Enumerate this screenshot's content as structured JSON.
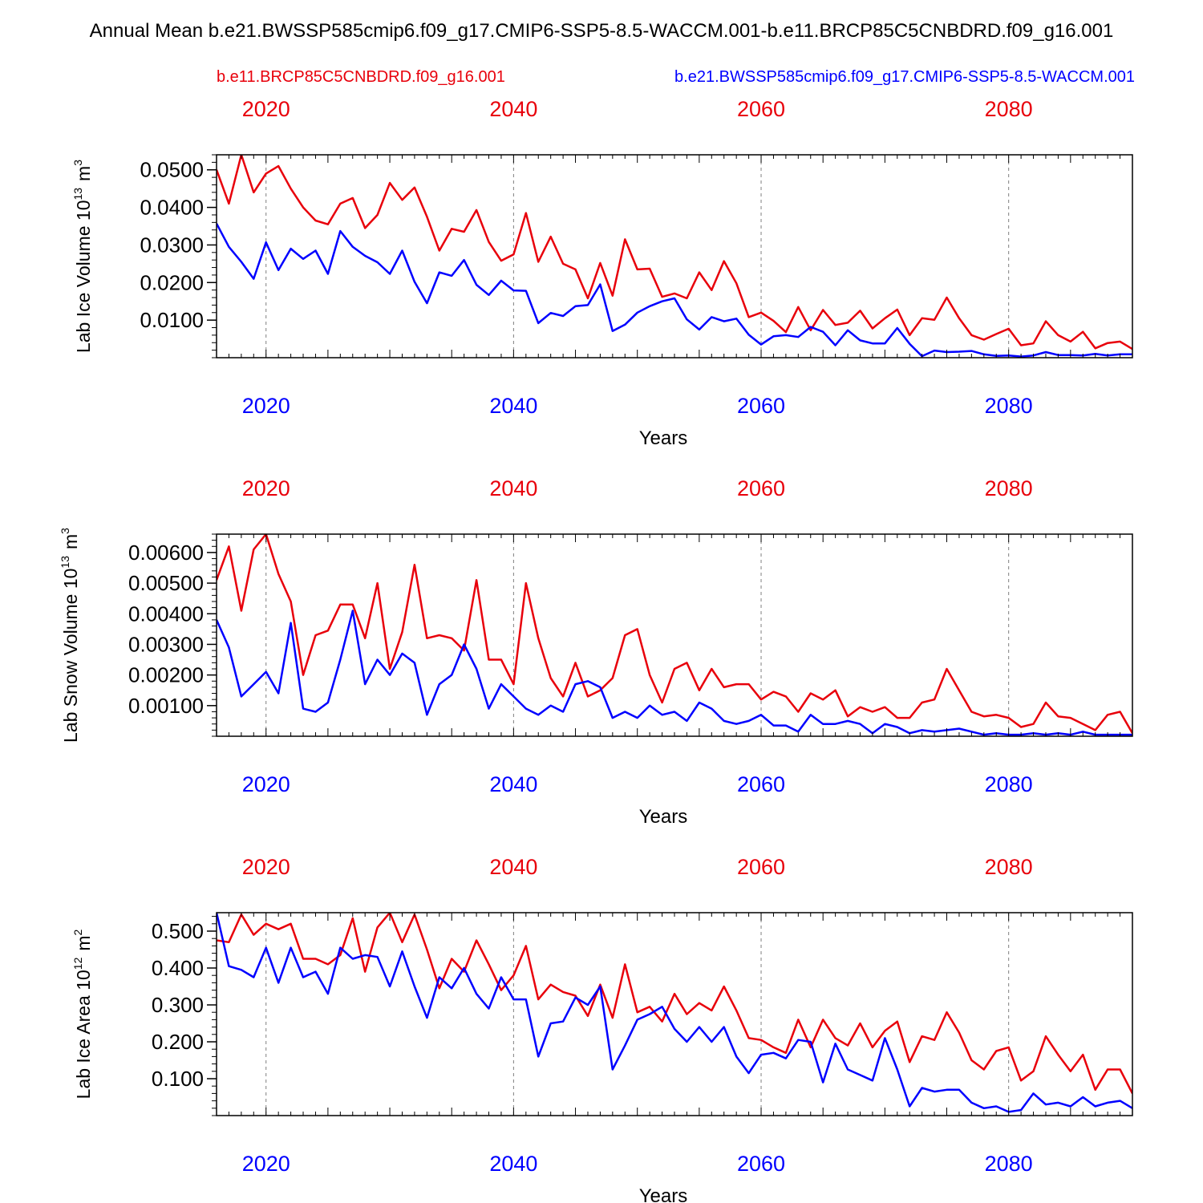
{
  "title": "Annual Mean b.e21.BWSSP585cmip6.f09_g17.CMIP6-SSP5-8.5-WACCM.001-b.e11.BRCP85C5CNBDRD.f09_g16.001",
  "colors": {
    "case1": "#e8000b",
    "case2": "#0000ff",
    "axis": "#000000",
    "grid": "#7f7f7f"
  },
  "legend": {
    "case1": "b.e11.BRCP85C5CNBDRD.f09_g16.001",
    "case2": "b.e21.BWSSP585cmip6.f09_g17.CMIP6-SSP5-8.5-WACCM.001"
  },
  "chart_data": [
    {
      "type": "line",
      "ylabel": "Lab Ice Volume 10",
      "ylabel_sup": "13",
      "ylabel_unit": "m",
      "ylabel_unit_sup": "3",
      "xlabel": "Years",
      "xlim": [
        2016,
        2090
      ],
      "ylim": [
        0,
        0.054
      ],
      "yticks": [
        0.01,
        0.02,
        0.03,
        0.04,
        0.05
      ],
      "yticklabels": [
        "0.0100",
        "0.0200",
        "0.0300",
        "0.0400",
        "0.0500"
      ],
      "xticks": [
        2020,
        2040,
        2060,
        2080
      ],
      "xticklabels": [
        "2020",
        "2040",
        "2060",
        "2080"
      ],
      "grid_x": true,
      "series": [
        {
          "name": "b.e11.BRCP85C5CNBDRD.f09_g16.001",
          "color": "#e8000b",
          "values": [
            0.05,
            0.041,
            0.054,
            0.044,
            0.049,
            0.051,
            0.045,
            0.04,
            0.0365,
            0.0355,
            0.041,
            0.0425,
            0.0345,
            0.038,
            0.0465,
            0.042,
            0.0453,
            0.0375,
            0.0285,
            0.0343,
            0.0335,
            0.0393,
            0.0308,
            0.0258,
            0.0275,
            0.0385,
            0.0255,
            0.0322,
            0.025,
            0.0235,
            0.0158,
            0.0252,
            0.0165,
            0.0315,
            0.0235,
            0.0237,
            0.0162,
            0.0171,
            0.0158,
            0.0227,
            0.018,
            0.0257,
            0.0198,
            0.0108,
            0.012,
            0.0098,
            0.0068,
            0.0135,
            0.0073,
            0.0127,
            0.0087,
            0.0093,
            0.0125,
            0.0078,
            0.0105,
            0.0128,
            0.006,
            0.0105,
            0.0101,
            0.016,
            0.0105,
            0.006,
            0.0048,
            0.0063,
            0.0077,
            0.0033,
            0.0038,
            0.0097,
            0.006,
            0.0043,
            0.0069,
            0.0025,
            0.0039,
            0.0043,
            0.0023
          ]
        },
        {
          "name": "b.e21.BWSSP585cmip6.f09_g17.CMIP6-SSP5-8.5-WACCM.001",
          "color": "#0000ff",
          "values": [
            0.0357,
            0.0295,
            0.0255,
            0.021,
            0.0307,
            0.0233,
            0.029,
            0.0263,
            0.0285,
            0.0223,
            0.0337,
            0.0295,
            0.0271,
            0.0254,
            0.0223,
            0.0285,
            0.0202,
            0.0145,
            0.0227,
            0.0218,
            0.026,
            0.0194,
            0.0167,
            0.0205,
            0.0179,
            0.0178,
            0.0092,
            0.0119,
            0.0111,
            0.0137,
            0.014,
            0.0195,
            0.0071,
            0.0088,
            0.012,
            0.0137,
            0.015,
            0.0158,
            0.0102,
            0.0075,
            0.0108,
            0.0097,
            0.0104,
            0.0061,
            0.0035,
            0.0057,
            0.006,
            0.0055,
            0.0082,
            0.0069,
            0.0033,
            0.0073,
            0.0046,
            0.0038,
            0.0038,
            0.0079,
            0.0037,
            0.0004,
            0.0019,
            0.0015,
            0.0016,
            0.0018,
            0.0009,
            0.0005,
            0.0006,
            0.0003,
            0.0006,
            0.0015,
            0.0007,
            0.0007,
            0.0006,
            0.001,
            0.0006,
            0.0009,
            0.0009
          ]
        }
      ]
    },
    {
      "type": "line",
      "ylabel": "Lab Snow Volume 10",
      "ylabel_sup": "13",
      "ylabel_unit": "m",
      "ylabel_unit_sup": "3",
      "xlabel": "Years",
      "xlim": [
        2016,
        2090
      ],
      "ylim": [
        0,
        0.0066
      ],
      "yticks": [
        0.001,
        0.002,
        0.003,
        0.004,
        0.005,
        0.006
      ],
      "yticklabels": [
        "0.00100",
        "0.00200",
        "0.00300",
        "0.00400",
        "0.00500",
        "0.00600"
      ],
      "xticks": [
        2020,
        2040,
        2060,
        2080
      ],
      "xticklabels": [
        "2020",
        "2040",
        "2060",
        "2080"
      ],
      "grid_x": true,
      "series": [
        {
          "name": "b.e11.BRCP85C5CNBDRD.f09_g16.001",
          "color": "#e8000b",
          "values": [
            0.0051,
            0.0062,
            0.0041,
            0.0061,
            0.0066,
            0.0053,
            0.0044,
            0.002,
            0.0033,
            0.00345,
            0.0043,
            0.0043,
            0.0032,
            0.005,
            0.0022,
            0.0034,
            0.0056,
            0.0032,
            0.0033,
            0.0032,
            0.0028,
            0.0051,
            0.0025,
            0.0025,
            0.0017,
            0.005,
            0.0032,
            0.0019,
            0.0013,
            0.0024,
            0.0013,
            0.0015,
            0.0019,
            0.0033,
            0.0035,
            0.002,
            0.0011,
            0.0022,
            0.0024,
            0.0015,
            0.0022,
            0.0016,
            0.0017,
            0.0017,
            0.0012,
            0.00145,
            0.0013,
            0.0008,
            0.0014,
            0.0012,
            0.0015,
            0.00065,
            0.00095,
            0.0008,
            0.00095,
            0.0006,
            0.0006,
            0.0011,
            0.0012,
            0.0022,
            0.0015,
            0.0008,
            0.00065,
            0.0007,
            0.0006,
            0.0003,
            0.0004,
            0.0011,
            0.00065,
            0.0006,
            0.0004,
            0.0002,
            0.0007,
            0.0008,
            0.0001
          ]
        },
        {
          "name": "b.e21.BWSSP585cmip6.f09_g17.CMIP6-SSP5-8.5-WACCM.001",
          "color": "#0000ff",
          "values": [
            0.0038,
            0.0029,
            0.0013,
            0.0017,
            0.0021,
            0.0014,
            0.0037,
            0.0009,
            0.0008,
            0.0011,
            0.0025,
            0.0041,
            0.0017,
            0.0025,
            0.002,
            0.0027,
            0.0024,
            0.0007,
            0.0017,
            0.002,
            0.003,
            0.0022,
            0.0009,
            0.0017,
            0.0013,
            0.0009,
            0.0007,
            0.001,
            0.0008,
            0.0017,
            0.0018,
            0.0016,
            0.0006,
            0.0008,
            0.0006,
            0.001,
            0.0007,
            0.0008,
            0.0005,
            0.0011,
            0.0009,
            0.0005,
            0.0004,
            0.0005,
            0.0007,
            0.00035,
            0.00035,
            0.00015,
            0.0007,
            0.0004,
            0.0004,
            0.0005,
            0.0004,
            0.0001,
            0.0004,
            0.0003,
            0.0001,
            0.0002,
            0.00015,
            0.0002,
            0.00025,
            0.00015,
            5e-05,
            0.0001,
            5e-05,
            5e-05,
            0.0001,
            5e-05,
            0.0001,
            5e-05,
            0.00015,
            5e-05,
            5e-05,
            5e-05,
            5e-05
          ]
        }
      ]
    },
    {
      "type": "line",
      "ylabel": "Lab Ice Area 10",
      "ylabel_sup": "12",
      "ylabel_unit": "m",
      "ylabel_unit_sup": "2",
      "xlabel": "Years",
      "xlim": [
        2016,
        2090
      ],
      "ylim": [
        0,
        0.55
      ],
      "yticks": [
        0.1,
        0.2,
        0.3,
        0.4,
        0.5
      ],
      "yticklabels": [
        "0.100",
        "0.200",
        "0.300",
        "0.400",
        "0.500"
      ],
      "xticks": [
        2020,
        2040,
        2060,
        2080
      ],
      "xticklabels": [
        "2020",
        "2040",
        "2060",
        "2080"
      ],
      "grid_x": true,
      "series": [
        {
          "name": "b.e11.BRCP85C5CNBDRD.f09_g16.001",
          "color": "#e8000b",
          "values": [
            0.475,
            0.47,
            0.545,
            0.49,
            0.52,
            0.505,
            0.52,
            0.425,
            0.425,
            0.41,
            0.435,
            0.535,
            0.39,
            0.51,
            0.55,
            0.47,
            0.545,
            0.45,
            0.345,
            0.425,
            0.39,
            0.475,
            0.41,
            0.34,
            0.38,
            0.46,
            0.315,
            0.355,
            0.335,
            0.325,
            0.27,
            0.355,
            0.265,
            0.41,
            0.28,
            0.295,
            0.255,
            0.33,
            0.275,
            0.305,
            0.285,
            0.35,
            0.285,
            0.21,
            0.205,
            0.185,
            0.17,
            0.26,
            0.185,
            0.26,
            0.21,
            0.19,
            0.25,
            0.185,
            0.23,
            0.255,
            0.145,
            0.215,
            0.205,
            0.28,
            0.225,
            0.15,
            0.125,
            0.175,
            0.185,
            0.095,
            0.12,
            0.215,
            0.165,
            0.12,
            0.165,
            0.07,
            0.125,
            0.125,
            0.06
          ]
        },
        {
          "name": "b.e21.BWSSP585cmip6.f09_g17.CMIP6-SSP5-8.5-WACCM.001",
          "color": "#0000ff",
          "values": [
            0.55,
            0.405,
            0.395,
            0.375,
            0.455,
            0.36,
            0.455,
            0.375,
            0.39,
            0.33,
            0.455,
            0.425,
            0.435,
            0.43,
            0.35,
            0.445,
            0.35,
            0.265,
            0.375,
            0.345,
            0.4,
            0.33,
            0.29,
            0.375,
            0.315,
            0.315,
            0.16,
            0.25,
            0.255,
            0.32,
            0.3,
            0.35,
            0.125,
            0.19,
            0.26,
            0.275,
            0.295,
            0.235,
            0.2,
            0.24,
            0.2,
            0.24,
            0.16,
            0.115,
            0.165,
            0.17,
            0.155,
            0.205,
            0.2,
            0.09,
            0.195,
            0.125,
            0.11,
            0.095,
            0.21,
            0.125,
            0.025,
            0.075,
            0.065,
            0.07,
            0.07,
            0.035,
            0.02,
            0.025,
            0.01,
            0.015,
            0.06,
            0.03,
            0.035,
            0.025,
            0.05,
            0.025,
            0.035,
            0.04,
            0.02
          ]
        }
      ]
    }
  ]
}
